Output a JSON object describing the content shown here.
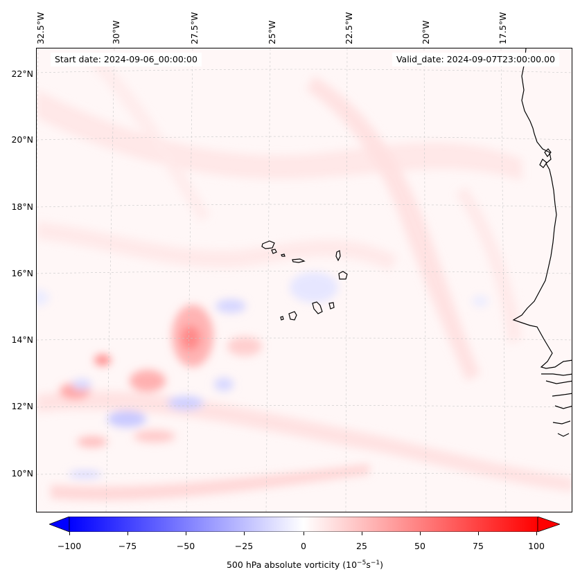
{
  "map": {
    "start_label": "Start date: 2024-09-06_00:00:00",
    "valid_label": "Valid_date: 2024-09-07T23:00:00.00",
    "lon_labels": [
      "32.5°W",
      "30°W",
      "27.5°W",
      "25°W",
      "22.5°W",
      "20°W",
      "17.5°W"
    ],
    "lat_labels": [
      "22°N",
      "20°N",
      "18°N",
      "16°N",
      "14°N",
      "12°N",
      "10°N"
    ],
    "field": "500 hPa absolute vorticity",
    "land_features": [
      "cape-verde-islands",
      "west-africa-coastline"
    ]
  },
  "colorbar": {
    "label_text": "500 hPa absolute vorticity (",
    "unit_base": "10",
    "unit_exp1": "−5",
    "unit_mid": "s",
    "unit_exp2": "−1",
    "unit_close": ")",
    "ticks": [
      "−100",
      "−75",
      "−50",
      "−25",
      "0",
      "25",
      "50",
      "75",
      "100"
    ],
    "min": -100,
    "max": 100,
    "extend": "both",
    "colormap": "bwr",
    "colors": {
      "negative": "#0000ff",
      "zero": "#ffffff",
      "positive": "#ff0000"
    }
  }
}
